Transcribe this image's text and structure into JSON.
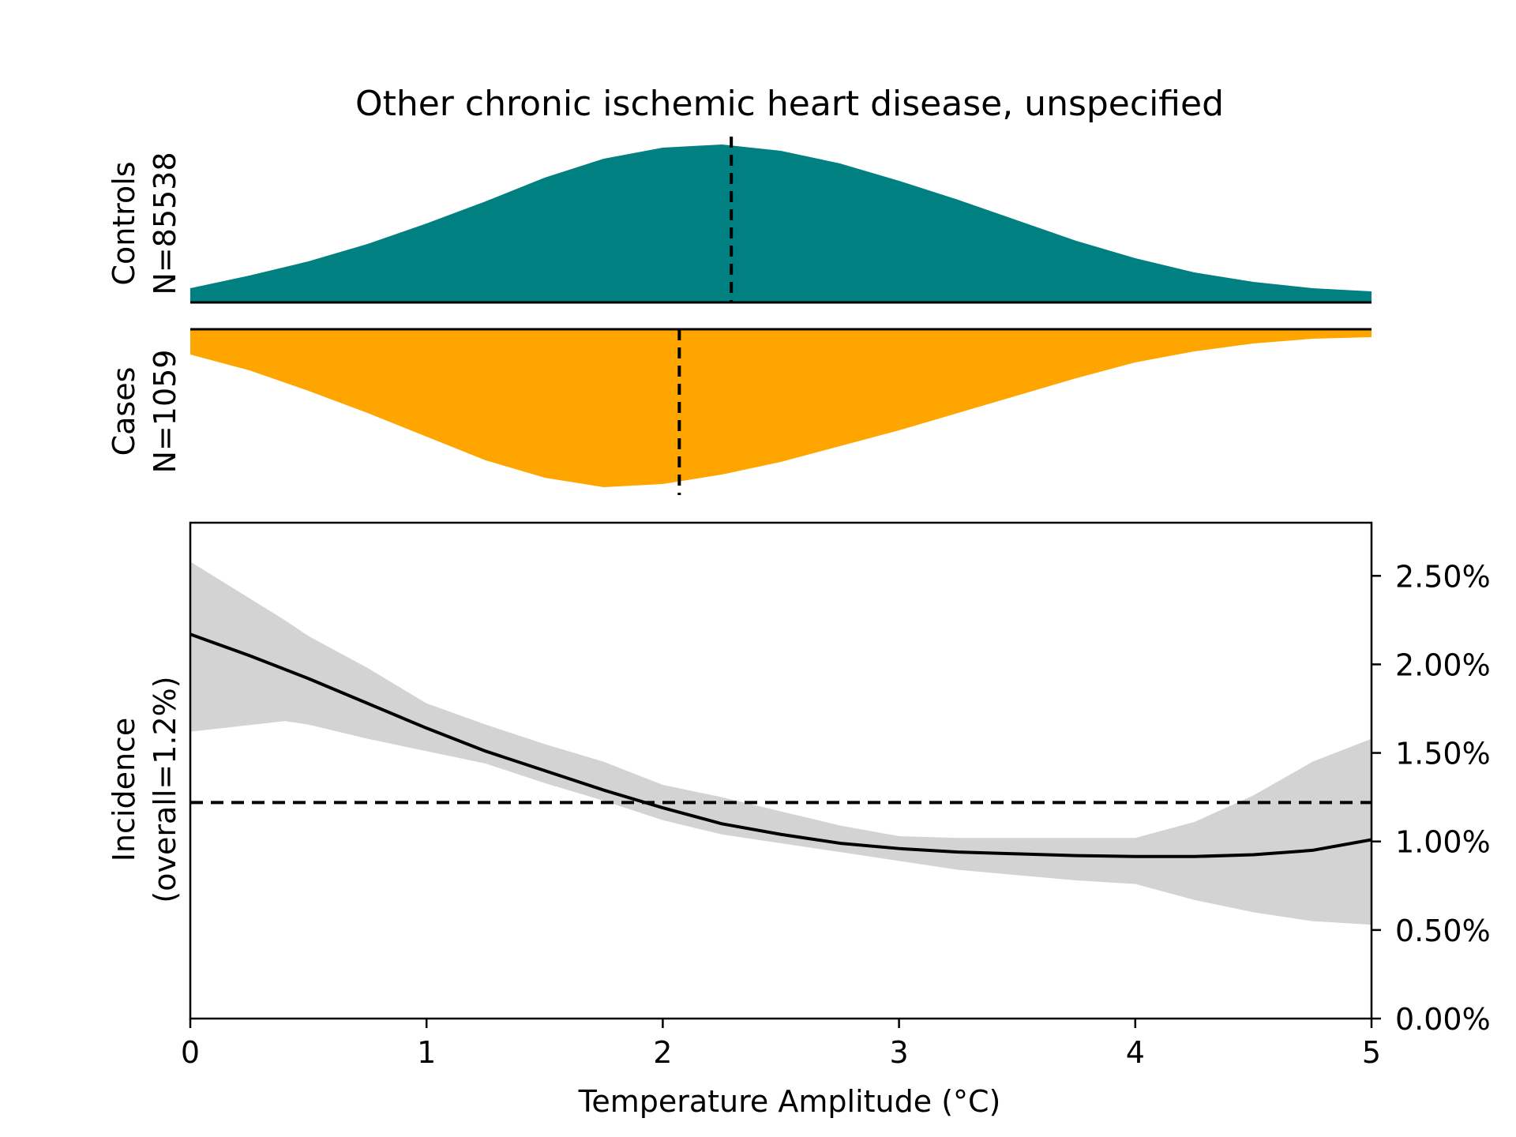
{
  "chart_data": {
    "type": "area",
    "title": "Other chronic ischemic heart disease, unspecified",
    "xlabel": "Temperature Amplitude (°C)",
    "ylabel": "Incidence\n(overall=1.2%)",
    "xlim": [
      0,
      5
    ],
    "ylim": [
      0,
      2.8
    ],
    "x_ticks": [
      0,
      1,
      2,
      3,
      4,
      5
    ],
    "x_tick_labels": [
      "0",
      "1",
      "2",
      "3",
      "4",
      "5"
    ],
    "y_ticks": [
      0,
      0.5,
      1.0,
      1.5,
      2.0,
      2.5
    ],
    "y_tick_labels": [
      "0.00%",
      "0.50%",
      "1.00%",
      "1.50%",
      "2.00%",
      "2.50%"
    ],
    "y_axis_side": "right",
    "overall_incidence": 1.22,
    "controls": {
      "label": "Controls",
      "n_label": "N=85538",
      "color": "#008080",
      "median": 2.29,
      "density_x": [
        0,
        0.25,
        0.5,
        0.75,
        1.0,
        1.25,
        1.5,
        1.75,
        2.0,
        2.25,
        2.5,
        2.75,
        3.0,
        3.25,
        3.5,
        3.75,
        4.0,
        4.25,
        4.5,
        4.75,
        5.0
      ],
      "density_y": [
        0.09,
        0.17,
        0.26,
        0.37,
        0.5,
        0.64,
        0.79,
        0.91,
        0.98,
        1.0,
        0.96,
        0.88,
        0.77,
        0.65,
        0.52,
        0.39,
        0.28,
        0.19,
        0.13,
        0.09,
        0.07
      ]
    },
    "cases": {
      "label": "Cases",
      "n_label": "N=1059",
      "color": "#FFA500",
      "median": 2.07,
      "density_x": [
        0,
        0.25,
        0.5,
        0.75,
        1.0,
        1.25,
        1.5,
        1.75,
        2.0,
        2.25,
        2.5,
        2.75,
        3.0,
        3.25,
        3.5,
        3.75,
        4.0,
        4.25,
        4.5,
        4.75,
        5.0
      ],
      "density_y": [
        0.16,
        0.26,
        0.39,
        0.53,
        0.68,
        0.83,
        0.94,
        1.0,
        0.98,
        0.92,
        0.84,
        0.74,
        0.64,
        0.53,
        0.42,
        0.31,
        0.21,
        0.14,
        0.09,
        0.06,
        0.05
      ]
    },
    "series": [
      {
        "type": "line",
        "x": [
          0,
          0.25,
          0.5,
          0.75,
          1.0,
          1.25,
          1.5,
          1.75,
          2.0,
          2.25,
          2.5,
          2.75,
          3.0,
          3.25,
          3.5,
          3.75,
          4.0,
          4.25,
          4.5,
          4.75,
          5.0
        ],
        "y": [
          2.17,
          2.05,
          1.92,
          1.78,
          1.64,
          1.51,
          1.4,
          1.29,
          1.19,
          1.1,
          1.04,
          0.99,
          0.96,
          0.94,
          0.93,
          0.92,
          0.915,
          0.915,
          0.925,
          0.95,
          1.01
        ],
        "color": "#000000"
      },
      {
        "type": "band",
        "x": [
          0,
          0.4,
          0.5,
          0.75,
          1.0,
          1.25,
          1.5,
          1.75,
          2.0,
          2.25,
          2.5,
          2.75,
          3.0,
          3.25,
          3.5,
          3.75,
          4.0,
          4.25,
          4.5,
          4.75,
          5.0
        ],
        "upper": [
          2.58,
          2.25,
          2.16,
          1.98,
          1.78,
          1.66,
          1.55,
          1.45,
          1.32,
          1.25,
          1.17,
          1.09,
          1.03,
          1.02,
          1.02,
          1.02,
          1.02,
          1.11,
          1.26,
          1.45,
          1.58
        ],
        "lower": [
          1.62,
          1.68,
          1.66,
          1.58,
          1.51,
          1.44,
          1.33,
          1.23,
          1.12,
          1.04,
          0.99,
          0.94,
          0.89,
          0.84,
          0.81,
          0.78,
          0.76,
          0.67,
          0.6,
          0.55,
          0.53
        ],
        "color": "#d3d3d3"
      }
    ]
  }
}
